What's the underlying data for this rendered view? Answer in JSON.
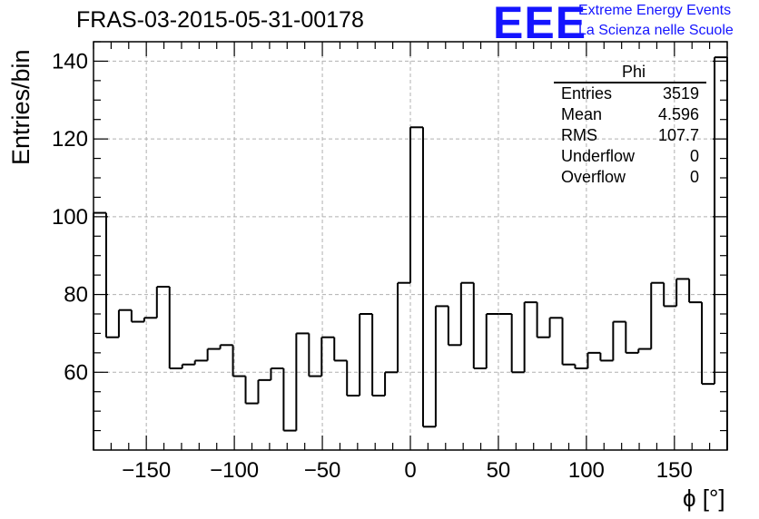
{
  "header": {
    "title": "FRAS-03-2015-05-31-00178",
    "logo_text": "EEE",
    "project_line1": "Extreme Energy Events",
    "project_line2": "La Scienza nelle Scuole"
  },
  "colors": {
    "brand_blue": "#1414ff",
    "grid": "#b0b0b0",
    "line": "#000000"
  },
  "stats_box": {
    "title": "Phi",
    "rows": [
      {
        "label": "Entries",
        "value": "3519"
      },
      {
        "label": "Mean",
        "value": "4.596"
      },
      {
        "label": "RMS",
        "value": "107.7"
      },
      {
        "label": "Underflow",
        "value": "0"
      },
      {
        "label": "Overflow",
        "value": "0"
      }
    ]
  },
  "chart_data": {
    "type": "histogram",
    "title": "FRAS-03-2015-05-31-00178",
    "xlabel": "ϕ [°]",
    "ylabel": "Entries/bin",
    "xlim": [
      -180,
      180
    ],
    "ylim": [
      40,
      145
    ],
    "bin_width": 7.2,
    "grid": true,
    "xticks": [
      -150,
      -100,
      -50,
      0,
      50,
      100,
      150
    ],
    "yticks": [
      60,
      80,
      100,
      120,
      140
    ],
    "xtick_labels": [
      "−150",
      "−100",
      "−50",
      "0",
      "50",
      "100",
      "150"
    ],
    "ytick_labels": [
      "60",
      "80",
      "100",
      "120",
      "140"
    ],
    "values": [
      101,
      69,
      76,
      73,
      74,
      82,
      61,
      62,
      63,
      66,
      67,
      59,
      52,
      58,
      61,
      45,
      70,
      59,
      69,
      63,
      54,
      75,
      54,
      60,
      83,
      123,
      46,
      77,
      67,
      83,
      61,
      75,
      75,
      60,
      78,
      69,
      74,
      62,
      61,
      65,
      63,
      73,
      65,
      66,
      83,
      77,
      84,
      78,
      57,
      141
    ]
  }
}
